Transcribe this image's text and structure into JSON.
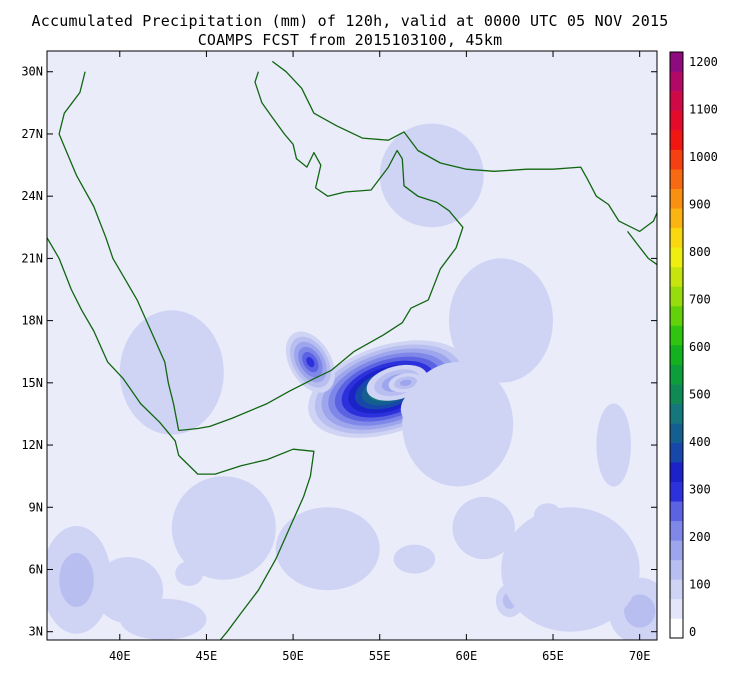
{
  "title_line1": "Accumulated Precipitation (mm) of 120h, valid at 0000 UTC 05 NOV 2015",
  "title_line2": "COAMPS FCST from 2015103100, 45km",
  "lat_labels": [
    {
      "value": 30,
      "text": "30N"
    },
    {
      "value": 27,
      "text": "27N"
    },
    {
      "value": 24,
      "text": "24N"
    },
    {
      "value": 21,
      "text": "21N"
    },
    {
      "value": 18,
      "text": "18N"
    },
    {
      "value": 15,
      "text": "15N"
    },
    {
      "value": 12,
      "text": "12N"
    },
    {
      "value": 9,
      "text": "9N"
    },
    {
      "value": 6,
      "text": "6N"
    },
    {
      "value": 3,
      "text": "3N"
    }
  ],
  "lon_labels": [
    {
      "value": 40,
      "text": "40E"
    },
    {
      "value": 45,
      "text": "45E"
    },
    {
      "value": 50,
      "text": "50E"
    },
    {
      "value": 55,
      "text": "55E"
    },
    {
      "value": 60,
      "text": "60E"
    },
    {
      "value": 65,
      "text": "65E"
    },
    {
      "value": 70,
      "text": "70E"
    }
  ],
  "colorbar": {
    "labels": [
      "0",
      "100",
      "200",
      "300",
      "400",
      "500",
      "600",
      "700",
      "800",
      "900",
      "1000",
      "1100",
      "1200"
    ],
    "colors": [
      "#ffffff",
      "#e3e6f8",
      "#cfd4f4",
      "#b8bff0",
      "#9da6ec",
      "#7f88e8",
      "#5c63e2",
      "#2d31dc",
      "#1a22c8",
      "#1747a9",
      "#155f90",
      "#15767c",
      "#108a55",
      "#0b9e3a",
      "#13b11f",
      "#2ec410",
      "#62d10c",
      "#97dc0c",
      "#c6e40d",
      "#eeee10",
      "#f9d812",
      "#fab512",
      "#f99012",
      "#f76a12",
      "#f54012",
      "#f01612",
      "#e40a2a",
      "#cf0948",
      "#b30966",
      "#8e0a7f"
    ]
  },
  "lon_range": [
    35.8,
    71.0
  ],
  "lat_range": [
    2.6,
    31.0
  ],
  "precip_blobs": [
    {
      "lon": 55.5,
      "lat": 14.7,
      "rlon": 4.8,
      "rlat": 2.1,
      "rot": -18,
      "peak": 480
    },
    {
      "lon": 51.0,
      "lat": 16.0,
      "rlon": 1.2,
      "rlat": 1.6,
      "rot": -30,
      "peak": 260
    },
    {
      "lon": 58.2,
      "lat": 13.9,
      "rlon": 2.0,
      "rlat": 1.1,
      "rot": -10,
      "peak": 190
    },
    {
      "lon": 56.0,
      "lat": 15.0,
      "rlon": 1.8,
      "rlat": 0.8,
      "rot": -15,
      "peak": 160
    },
    {
      "lon": 56.5,
      "lat": 15.0,
      "rlon": 1.0,
      "rlat": 0.45,
      "rot": -10,
      "peak": 140
    },
    {
      "lon": 59.5,
      "lat": 13.0,
      "rlon": 3.2,
      "rlat": 3.0,
      "rot": 0,
      "peak": 70
    },
    {
      "lon": 37.5,
      "lat": 5.5,
      "rlon": 2.0,
      "rlat": 2.6,
      "rot": 0,
      "peak": 110
    },
    {
      "lon": 40.5,
      "lat": 5.0,
      "rlon": 2.0,
      "rlat": 1.6,
      "rot": 0,
      "peak": 70
    },
    {
      "lon": 42.5,
      "lat": 3.6,
      "rlon": 2.5,
      "rlat": 1.0,
      "rot": 0,
      "peak": 60
    },
    {
      "lon": 70.0,
      "lat": 4.0,
      "rlon": 1.8,
      "rlat": 1.6,
      "rot": 0,
      "peak": 90
    },
    {
      "lon": 62.5,
      "lat": 4.5,
      "rlon": 0.8,
      "rlat": 0.8,
      "rot": 0,
      "peak": 80
    },
    {
      "lon": 64.7,
      "lat": 8.6,
      "rlon": 0.8,
      "rlat": 0.6,
      "rot": 0,
      "peak": 70
    },
    {
      "lon": 44.0,
      "lat": 5.8,
      "rlon": 0.8,
      "rlat": 0.6,
      "rot": 0,
      "peak": 70
    },
    {
      "lon": 57.0,
      "lat": 6.5,
      "rlon": 1.2,
      "rlat": 0.7,
      "rot": 0,
      "peak": 45
    },
    {
      "lon": 61.0,
      "lat": 8.0,
      "rlon": 1.8,
      "rlat": 1.5,
      "rot": 0,
      "peak": 40
    },
    {
      "lon": 68.5,
      "lat": 12.0,
      "rlon": 1.0,
      "rlat": 2.0,
      "rot": 0,
      "peak": 40
    },
    {
      "lon": 66.0,
      "lat": 6.0,
      "rlon": 4.0,
      "rlat": 3.0,
      "rot": 0,
      "peak": 35
    },
    {
      "lon": 46.0,
      "lat": 8.0,
      "rlon": 3.0,
      "rlat": 2.5,
      "rot": 0,
      "peak": 25
    },
    {
      "lon": 52.0,
      "lat": 7.0,
      "rlon": 3.0,
      "rlat": 2.0,
      "rot": 0,
      "peak": 25
    },
    {
      "lon": 62.0,
      "lat": 18.0,
      "rlon": 3.0,
      "rlat": 3.0,
      "rot": 0,
      "peak": 20
    },
    {
      "lon": 43.0,
      "lat": 15.5,
      "rlon": 3.0,
      "rlat": 3.0,
      "rot": 0,
      "peak": 20
    },
    {
      "lon": 58.0,
      "lat": 25.0,
      "rlon": 3.0,
      "rlat": 2.5,
      "rot": 0,
      "peak": 15
    }
  ],
  "coastlines": [
    {
      "name": "africa-red-sea-coast",
      "pts": [
        [
          35.8,
          22.0
        ],
        [
          36.5,
          21.0
        ],
        [
          37.2,
          19.5
        ],
        [
          37.8,
          18.5
        ],
        [
          38.5,
          17.5
        ],
        [
          39.3,
          16.0
        ],
        [
          40.2,
          15.2
        ],
        [
          41.2,
          14.0
        ],
        [
          42.3,
          13.1
        ],
        [
          43.2,
          12.2
        ],
        [
          43.4,
          11.5
        ],
        [
          44.5,
          10.6
        ],
        [
          45.5,
          10.6
        ],
        [
          47.0,
          11.0
        ],
        [
          48.5,
          11.3
        ],
        [
          50.0,
          11.8
        ],
        [
          51.2,
          11.7
        ],
        [
          51.0,
          10.5
        ],
        [
          50.6,
          9.5
        ],
        [
          49.8,
          8.0
        ],
        [
          49.0,
          6.5
        ],
        [
          48.0,
          5.0
        ],
        [
          47.0,
          3.9
        ],
        [
          46.2,
          3.0
        ],
        [
          45.8,
          2.6
        ]
      ]
    },
    {
      "name": "arabia-west-coast",
      "pts": [
        [
          38.0,
          30.0
        ],
        [
          37.7,
          29.0
        ],
        [
          36.8,
          28.0
        ],
        [
          36.5,
          27.0
        ],
        [
          37.0,
          26.0
        ],
        [
          37.5,
          25.0
        ],
        [
          38.5,
          23.5
        ],
        [
          39.2,
          22.0
        ],
        [
          39.6,
          21.0
        ],
        [
          40.3,
          20.0
        ],
        [
          41.0,
          19.0
        ],
        [
          41.8,
          17.5
        ],
        [
          42.6,
          16.0
        ],
        [
          42.8,
          15.0
        ],
        [
          43.1,
          14.0
        ],
        [
          43.4,
          12.7
        ]
      ]
    },
    {
      "name": "arabia-south-coast",
      "pts": [
        [
          43.4,
          12.7
        ],
        [
          44.5,
          12.8
        ],
        [
          45.2,
          12.9
        ],
        [
          46.5,
          13.3
        ],
        [
          48.5,
          14.0
        ],
        [
          49.8,
          14.6
        ],
        [
          51.2,
          15.2
        ],
        [
          52.2,
          15.6
        ],
        [
          53.5,
          16.5
        ],
        [
          55.2,
          17.3
        ],
        [
          56.3,
          17.9
        ],
        [
          56.8,
          18.6
        ],
        [
          57.8,
          19.0
        ],
        [
          58.5,
          20.5
        ],
        [
          59.4,
          21.5
        ],
        [
          59.8,
          22.5
        ],
        [
          59.0,
          23.3
        ],
        [
          58.3,
          23.7
        ],
        [
          57.2,
          24.0
        ],
        [
          56.4,
          24.5
        ],
        [
          56.3,
          25.8
        ],
        [
          56.0,
          26.2
        ],
        [
          55.5,
          25.4
        ],
        [
          54.5,
          24.3
        ],
        [
          53.0,
          24.2
        ],
        [
          52.0,
          24.0
        ],
        [
          51.3,
          24.4
        ],
        [
          51.6,
          25.5
        ],
        [
          51.2,
          26.1
        ],
        [
          50.8,
          25.4
        ],
        [
          50.2,
          25.8
        ],
        [
          50.0,
          26.5
        ],
        [
          49.5,
          27.0
        ],
        [
          48.8,
          27.8
        ],
        [
          48.2,
          28.5
        ],
        [
          47.8,
          29.5
        ],
        [
          48.0,
          30.0
        ]
      ]
    },
    {
      "name": "iran-pakistan-coast",
      "pts": [
        [
          48.8,
          30.5
        ],
        [
          49.6,
          30.0
        ],
        [
          50.5,
          29.2
        ],
        [
          51.2,
          28.0
        ],
        [
          52.5,
          27.4
        ],
        [
          54.0,
          26.8
        ],
        [
          55.5,
          26.7
        ],
        [
          56.4,
          27.1
        ],
        [
          57.2,
          26.2
        ],
        [
          58.5,
          25.6
        ],
        [
          60.0,
          25.3
        ],
        [
          61.6,
          25.2
        ],
        [
          63.5,
          25.3
        ],
        [
          65.0,
          25.3
        ],
        [
          66.6,
          25.4
        ],
        [
          67.0,
          24.8
        ],
        [
          67.5,
          24.0
        ],
        [
          68.2,
          23.6
        ],
        [
          68.8,
          22.8
        ],
        [
          70.0,
          22.3
        ],
        [
          70.8,
          22.8
        ],
        [
          71.0,
          23.2
        ]
      ]
    },
    {
      "name": "india-west-coast",
      "pts": [
        [
          69.3,
          22.3
        ],
        [
          70.5,
          21.0
        ],
        [
          71.0,
          20.7
        ]
      ]
    }
  ]
}
